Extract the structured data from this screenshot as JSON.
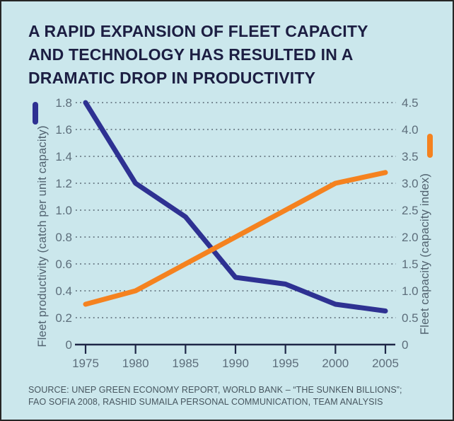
{
  "title_lines": [
    "A RAPID EXPANSION OF FLEET CAPACITY",
    "AND TECHNOLOGY HAS RESULTED IN A",
    "DRAMATIC DROP IN PRODUCTIVITY"
  ],
  "source_lines": [
    "SOURCE: UNEP GREEN ECONOMY REPORT, WORLD BANK  – “THE SUNKEN BILLIONS”;",
    "FAO SOFIA 2008, RASHID SUMAILA PERSONAL COMMUNICATION, TEAM ANALYSIS"
  ],
  "colors": {
    "background": "#cbe7ec",
    "border": "#262626",
    "title_text": "#1c1e42",
    "productivity_line": "#2e3192",
    "capacity_line": "#f5821f",
    "grid_dots": "#64747f",
    "axis_line": "#1e2747",
    "tick_text": "#5d6e7b",
    "axis_label_text": "#51626f",
    "source_text": "#47565f"
  },
  "chart_data": {
    "type": "line",
    "x": [
      1975,
      1980,
      1985,
      1990,
      1995,
      2000,
      2005
    ],
    "x_tick_labels": [
      "1975",
      "1980",
      "1985",
      "1990",
      "1995",
      "2000",
      "2005"
    ],
    "series": [
      {
        "name": "Fleet productivity (catch per unit capacity)",
        "axis": "left",
        "color": "#2e3192",
        "values": [
          1.8,
          1.2,
          0.95,
          0.5,
          0.45,
          0.3,
          0.25
        ]
      },
      {
        "name": "Fleet capacity (capacity index)",
        "axis": "right",
        "color": "#f5821f",
        "values": [
          0.75,
          1.0,
          1.5,
          2.0,
          2.5,
          3.0,
          3.2
        ]
      }
    ],
    "left_axis": {
      "label": "Fleet productivity (catch per unit capacity)",
      "tick_labels": [
        "1.8",
        "1.6",
        "1.4",
        "1.2",
        "1.0",
        "0.8",
        "0.6",
        "0.4",
        "0.2",
        "0"
      ],
      "range": [
        0,
        1.8
      ]
    },
    "right_axis": {
      "label": "Fleet capacity (capacity index)",
      "tick_labels": [
        "4.5",
        "4.0",
        "3.5",
        "3.0",
        "2.5",
        "2.0",
        "1.5",
        "1.0",
        "0.5",
        "0"
      ],
      "range": [
        0,
        4.5
      ]
    },
    "grid": "dotted-horizontal",
    "legend_position": "axis-swatches"
  }
}
